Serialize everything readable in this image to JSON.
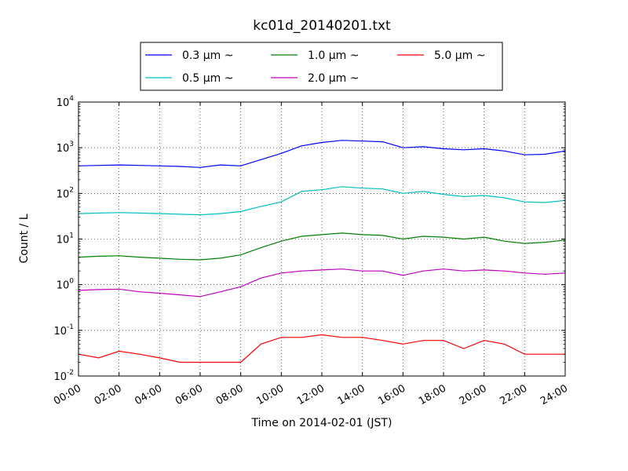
{
  "chart_data": {
    "type": "line",
    "title": "kc01d_20140201.txt",
    "xlabel": "Time on 2014-02-01 (JST)",
    "ylabel": "Count / L",
    "xlim": [
      "00:00",
      "24:00"
    ],
    "ylim": [
      0.01,
      10000
    ],
    "yscale": "log",
    "grid": true,
    "legend_position": "top-center",
    "x_ticks": [
      "00:00",
      "02:00",
      "04:00",
      "06:00",
      "08:00",
      "10:00",
      "12:00",
      "14:00",
      "16:00",
      "18:00",
      "20:00",
      "22:00",
      "24:00"
    ],
    "y_ticks": [
      {
        "base": "10",
        "exp": "-2",
        "value": 0.01
      },
      {
        "base": "10",
        "exp": "-1",
        "value": 0.1
      },
      {
        "base": "10",
        "exp": "0",
        "value": 1
      },
      {
        "base": "10",
        "exp": "1",
        "value": 10
      },
      {
        "base": "10",
        "exp": "2",
        "value": 100
      },
      {
        "base": "10",
        "exp": "3",
        "value": 1000
      },
      {
        "base": "10",
        "exp": "4",
        "value": 10000
      }
    ],
    "x": [
      "00:00",
      "01:00",
      "02:00",
      "03:00",
      "04:00",
      "05:00",
      "06:00",
      "07:00",
      "08:00",
      "09:00",
      "10:00",
      "11:00",
      "12:00",
      "13:00",
      "14:00",
      "15:00",
      "16:00",
      "17:00",
      "18:00",
      "19:00",
      "20:00",
      "21:00",
      "22:00",
      "23:00",
      "24:00"
    ],
    "series": [
      {
        "name": "0.3 μm ~",
        "color": "#0000ff",
        "values": [
          400,
          410,
          420,
          410,
          400,
          390,
          370,
          420,
          400,
          550,
          750,
          1100,
          1300,
          1450,
          1400,
          1350,
          1000,
          1050,
          950,
          900,
          950,
          850,
          700,
          720,
          850
        ]
      },
      {
        "name": "0.5 μm ~",
        "color": "#00bfbf",
        "values": [
          36,
          37,
          38,
          37,
          36,
          35,
          34,
          36,
          40,
          52,
          65,
          110,
          120,
          140,
          130,
          125,
          100,
          110,
          95,
          85,
          90,
          80,
          65,
          63,
          70
        ]
      },
      {
        "name": "1.0 μm ~",
        "color": "#008000",
        "values": [
          4.0,
          4.2,
          4.3,
          4.0,
          3.8,
          3.6,
          3.5,
          3.8,
          4.5,
          6.5,
          9.0,
          11.5,
          12.5,
          13.5,
          12.5,
          12.0,
          10.0,
          11.5,
          11.0,
          10.0,
          11.0,
          9.0,
          8.0,
          8.5,
          9.5
        ]
      },
      {
        "name": "2.0 μm ~",
        "color": "#bf00bf",
        "values": [
          0.75,
          0.78,
          0.8,
          0.7,
          0.65,
          0.6,
          0.55,
          0.7,
          0.9,
          1.4,
          1.8,
          2.0,
          2.1,
          2.2,
          2.0,
          2.0,
          1.6,
          2.0,
          2.2,
          2.0,
          2.1,
          2.0,
          1.8,
          1.7,
          1.8
        ]
      },
      {
        "name": "5.0 μm ~",
        "color": "#ff0000",
        "values": [
          0.03,
          0.025,
          0.035,
          0.03,
          0.025,
          0.02,
          0.02,
          0.02,
          0.02,
          0.05,
          0.07,
          0.07,
          0.08,
          0.07,
          0.07,
          0.06,
          0.05,
          0.06,
          0.06,
          0.04,
          0.06,
          0.05,
          0.03,
          0.03,
          0.03
        ]
      }
    ]
  }
}
